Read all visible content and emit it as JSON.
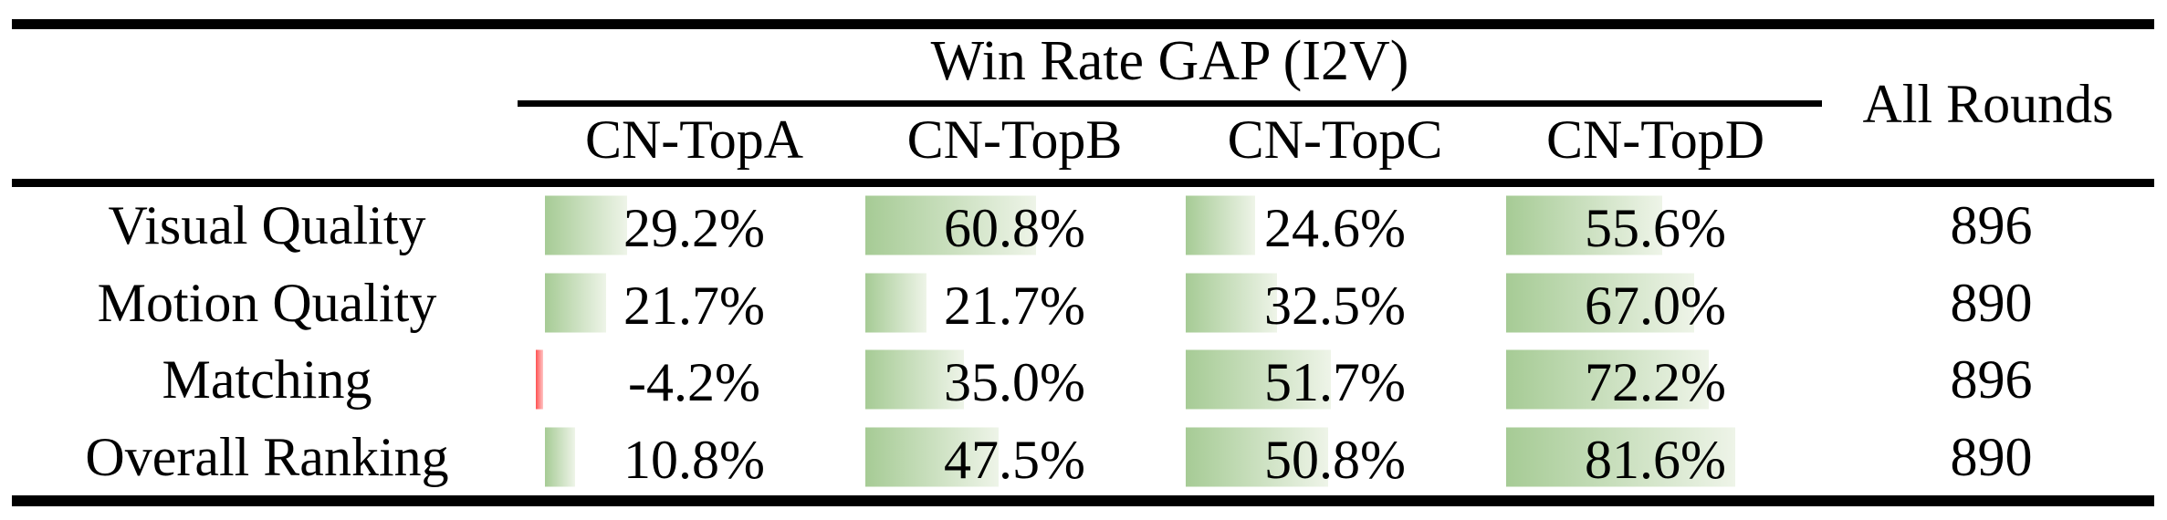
{
  "table": {
    "title": "Win Rate GAP (I2V)",
    "all_rounds_label": "All Rounds",
    "columns": [
      "CN-TopA",
      "CN-TopB",
      "CN-TopC",
      "CN-TopD"
    ],
    "rows": [
      {
        "label": "Visual Quality",
        "cells": [
          {
            "display": "29.2%",
            "value": 29.2
          },
          {
            "display": "60.8%",
            "value": 60.8
          },
          {
            "display": "24.6%",
            "value": 24.6
          },
          {
            "display": "55.6%",
            "value": 55.6
          }
        ],
        "rounds": "896"
      },
      {
        "label": "Motion Quality",
        "cells": [
          {
            "display": "21.7%",
            "value": 21.7
          },
          {
            "display": "21.7%",
            "value": 21.7
          },
          {
            "display": "32.5%",
            "value": 32.5
          },
          {
            "display": "67.0%",
            "value": 67.0
          }
        ],
        "rounds": "890"
      },
      {
        "label": "Matching",
        "cells": [
          {
            "display": "-4.2%",
            "value": -4.2
          },
          {
            "display": "35.0%",
            "value": 35.0
          },
          {
            "display": "51.7%",
            "value": 51.7
          },
          {
            "display": "72.2%",
            "value": 72.2
          }
        ],
        "rounds": "896"
      },
      {
        "label": "Overall Ranking",
        "cells": [
          {
            "display": "10.8%",
            "value": 10.8
          },
          {
            "display": "47.5%",
            "value": 47.5
          },
          {
            "display": "50.8%",
            "value": 50.8
          },
          {
            "display": "81.6%",
            "value": 81.6
          }
        ],
        "rounds": "890"
      }
    ]
  },
  "colors": {
    "bar_positive_start": "#a6cb95",
    "bar_positive_end": "#eef4e8",
    "bar_negative_start": "#ff5252",
    "bar_negative_end": "#ffc4c4",
    "rule": "#000000",
    "text": "#000000",
    "background": "#ffffff"
  },
  "chart_data": {
    "type": "table",
    "title": "Win Rate GAP (I2V)",
    "row_header": [
      "Visual Quality",
      "Motion Quality",
      "Matching",
      "Overall Ranking"
    ],
    "columns": [
      "CN-TopA",
      "CN-TopB",
      "CN-TopC",
      "CN-TopD",
      "All Rounds"
    ],
    "values": [
      [
        29.2,
        60.8,
        24.6,
        55.6,
        896
      ],
      [
        21.7,
        21.7,
        32.5,
        67.0,
        890
      ],
      [
        -4.2,
        35.0,
        51.7,
        72.2,
        896
      ],
      [
        10.8,
        47.5,
        50.8,
        81.6,
        890
      ]
    ],
    "value_units": [
      "%",
      "%",
      "%",
      "%",
      "rounds"
    ],
    "bar_scale_note": "in-cell data bars, 100% ~ full cell width; green = positive, red = negative"
  }
}
